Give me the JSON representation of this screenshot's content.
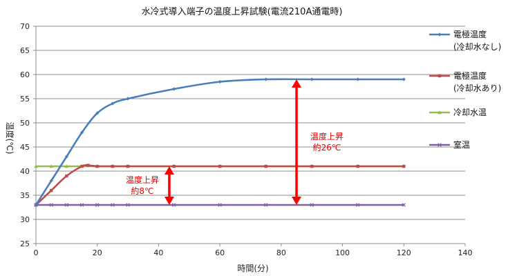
{
  "chart_data": {
    "type": "line",
    "title": "水冷式導入端子の温度上昇試験(電流210A通電時)",
    "xlabel": "時間(分)",
    "ylabel": "温度(℃)",
    "xlim": [
      0,
      140
    ],
    "ylim": [
      25,
      70
    ],
    "x_ticks": [
      0,
      20,
      40,
      60,
      80,
      100,
      120,
      140
    ],
    "y_ticks": [
      25,
      30,
      35,
      40,
      45,
      50,
      55,
      60,
      65,
      70
    ],
    "grid": "horizontal",
    "legend_position": "right",
    "series": [
      {
        "name": "電極温度\n(冷却水なし)",
        "color": "#4a7ebb",
        "marker": "diamond",
        "x": [
          0,
          5,
          10,
          15,
          20,
          25,
          30,
          45,
          60,
          75,
          90,
          105,
          120
        ],
        "y": [
          33,
          38,
          43,
          48,
          52,
          54,
          55,
          57,
          58.5,
          59,
          59,
          59,
          59
        ]
      },
      {
        "name": "電極温度\n(冷却水あり)",
        "color": "#be4b48",
        "marker": "square",
        "x": [
          0,
          5,
          10,
          15,
          17,
          20,
          25,
          30,
          45,
          60,
          75,
          90,
          105,
          120
        ],
        "y": [
          33,
          36,
          39,
          41,
          41.2,
          41,
          41,
          41,
          41,
          41,
          41,
          41,
          41,
          41
        ]
      },
      {
        "name": "冷却水温",
        "color": "#98b954",
        "marker": "triangle",
        "x": [
          0,
          5,
          10,
          15,
          20,
          25,
          30,
          45,
          60,
          75,
          90,
          105,
          120
        ],
        "y": [
          41,
          41,
          41,
          41,
          41,
          41,
          41,
          41,
          41,
          41,
          41,
          41,
          41
        ]
      },
      {
        "name": "室温",
        "color": "#7d60a0",
        "marker": "x",
        "x": [
          0,
          5,
          10,
          15,
          20,
          25,
          30,
          45,
          60,
          75,
          90,
          105,
          120
        ],
        "y": [
          33,
          33,
          33,
          33,
          33,
          33,
          33,
          33,
          33,
          33,
          33,
          33,
          33
        ]
      }
    ],
    "annotations": [
      {
        "text": "温度上昇\n約8℃",
        "x": 43.5,
        "y_from": 33,
        "y_to": 41,
        "color": "#ff0000"
      },
      {
        "text": "温度上昇\n約26℃",
        "x": 85,
        "y_from": 33,
        "y_to": 59,
        "color": "#ff0000"
      }
    ]
  }
}
